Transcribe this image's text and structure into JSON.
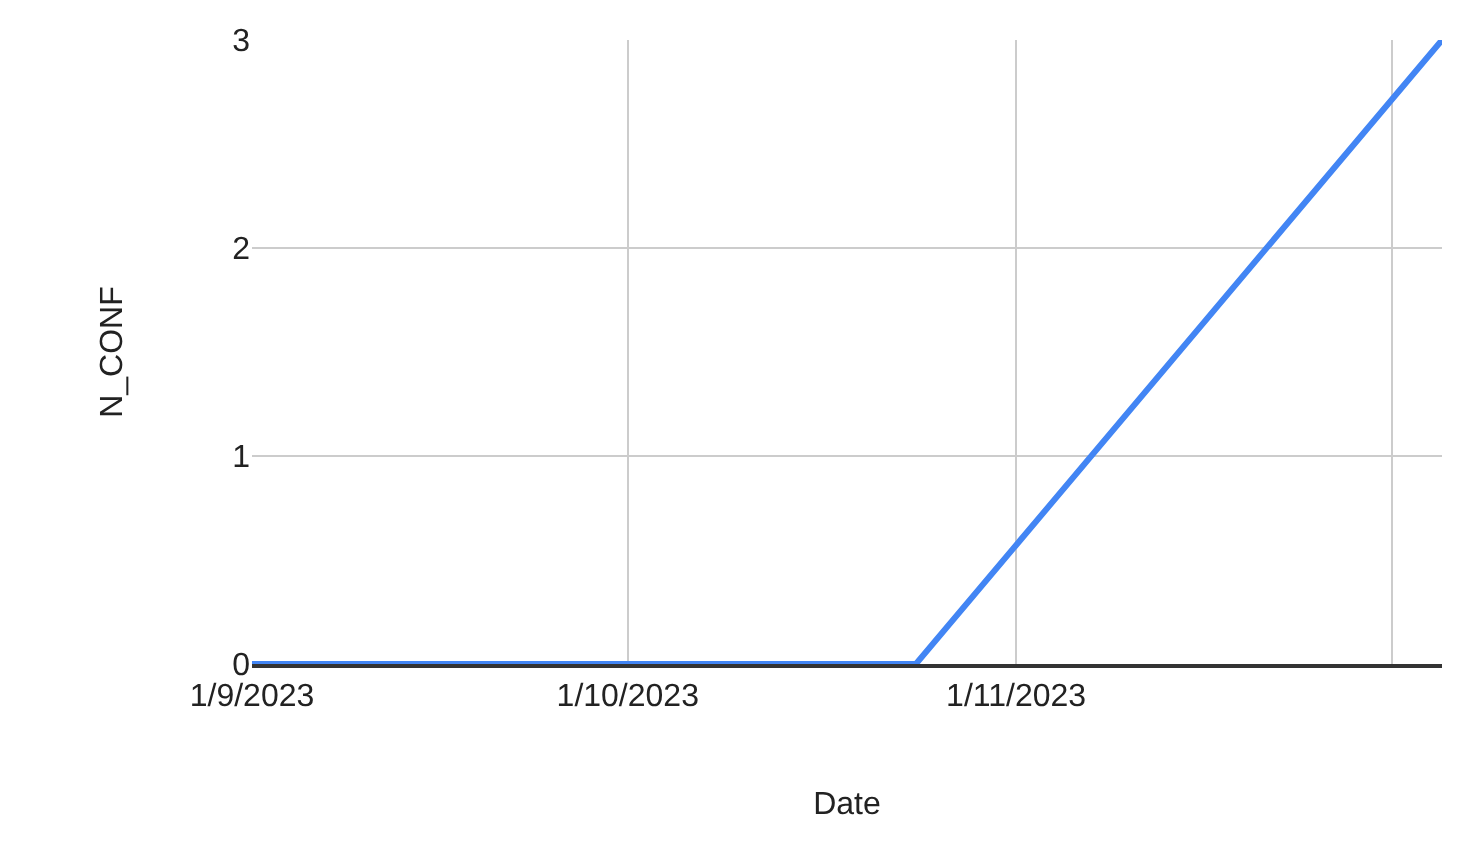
{
  "chart_data": {
    "type": "line",
    "xlabel": "Date",
    "ylabel": "N_CONF",
    "x": [
      "2023-09-01",
      "2023-10-24",
      "2023-12-05"
    ],
    "series": [
      {
        "color": "#4285f4",
        "values": [
          0,
          0,
          3
        ]
      }
    ],
    "xlim": [
      "2023-09-01",
      "2023-12-05"
    ],
    "xticks": [
      {
        "value": "2023-09-01",
        "label": "1/9/2023"
      },
      {
        "value": "2023-10-01",
        "label": "1/10/2023"
      },
      {
        "value": "2023-11-01",
        "label": "1/11/2023"
      },
      {
        "value": "2023-12-01",
        "label": null
      }
    ],
    "ylim": [
      0,
      3
    ],
    "yticks": [
      0,
      1,
      2,
      3
    ],
    "grid": true,
    "marker": "none",
    "line_style": "solid",
    "legend": false
  }
}
